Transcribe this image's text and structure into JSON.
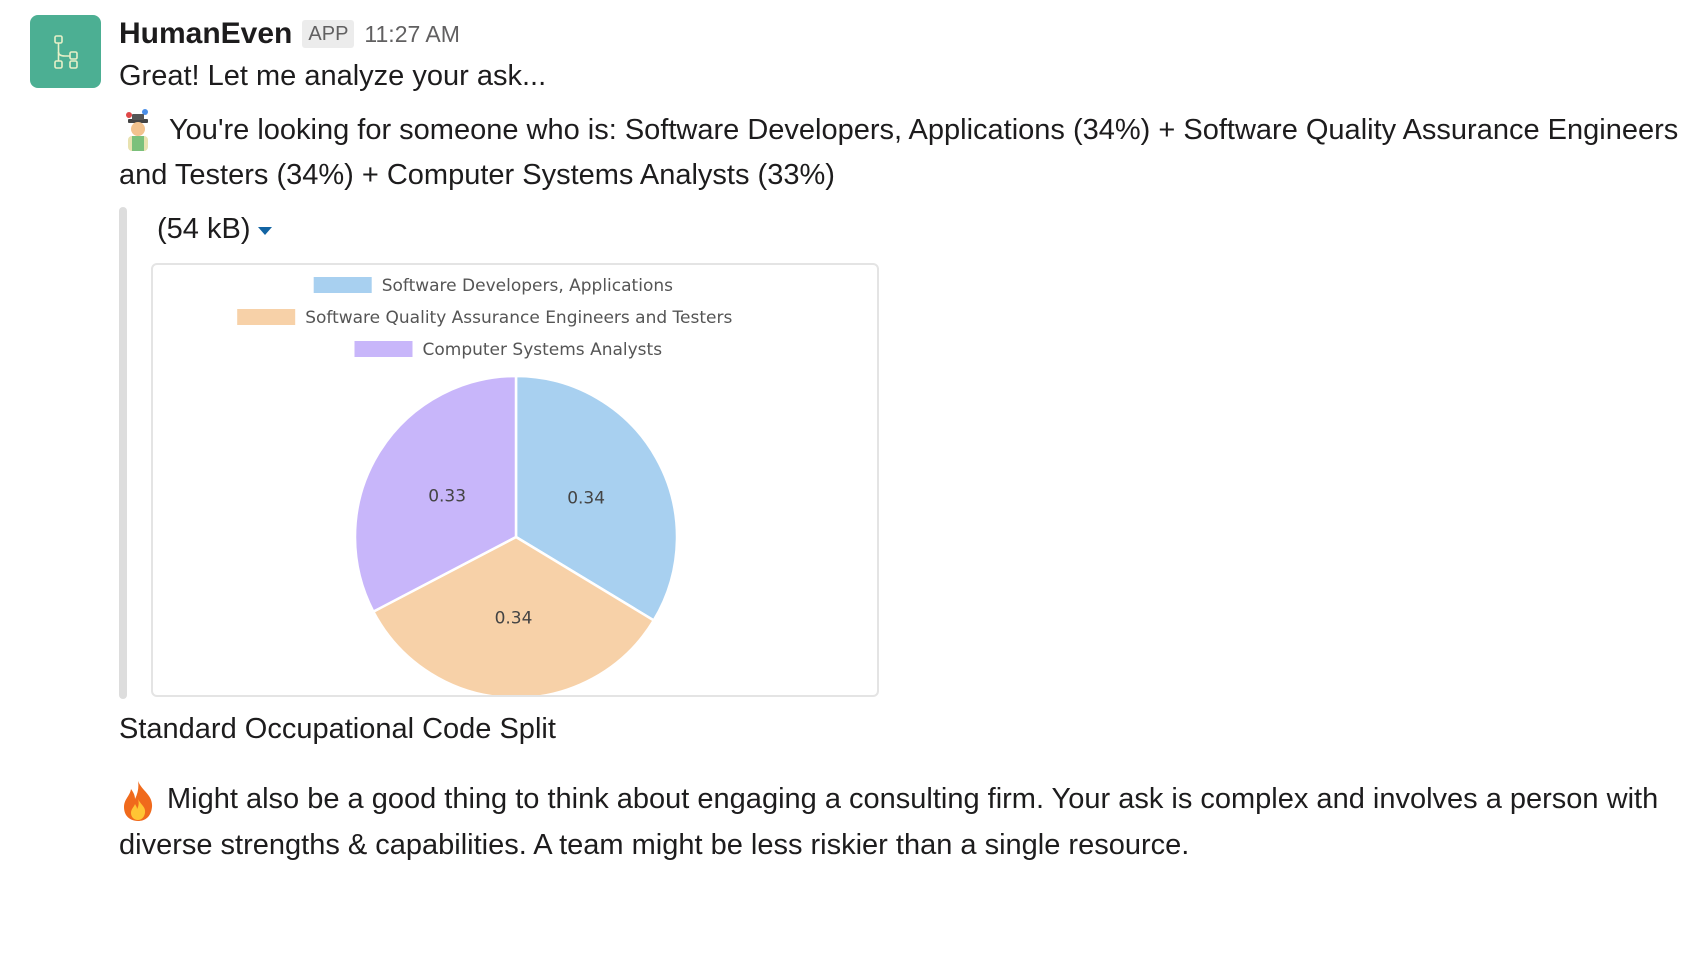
{
  "message": {
    "sender": "HumanEven",
    "badge": "APP",
    "time": "11:27 AM",
    "line1": "Great! Let me analyze your ask...",
    "line2": "You're looking for someone who is: Software Developers, Applications (34%) + Software Quality Assurance Engineers and Testers (34%) + Computer Systems Analysts (33%)",
    "caption": "Standard Occupational Code Split",
    "line3": "Might also be a good thing to think about engaging a consulting firm. Your ask is complex and involves a person with diverse strengths & capabilities. A team might be less riskier than a single resource."
  },
  "icons": {
    "avatar": "workflow-icon",
    "emoji1": "juggler-emoji",
    "emoji2": "fire-emoji",
    "caret": "caret-down-icon"
  },
  "attachment": {
    "size_label": "(54 kB)"
  },
  "colors": {
    "avatar_bg": "#4caf93",
    "slice1": "#a8d0f0",
    "slice2": "#f7d1a8",
    "slice3": "#c8b6fa"
  },
  "chart_data": {
    "type": "pie",
    "legend": "top-center",
    "series": [
      {
        "name": "Software Developers, Applications",
        "value": 0.34,
        "color": "#a8d0f0"
      },
      {
        "name": "Software Quality Assurance Engineers and Testers",
        "value": 0.34,
        "color": "#f7d1a8"
      },
      {
        "name": "Computer Systems Analysts",
        "value": 0.33,
        "color": "#c8b6fa"
      }
    ]
  }
}
